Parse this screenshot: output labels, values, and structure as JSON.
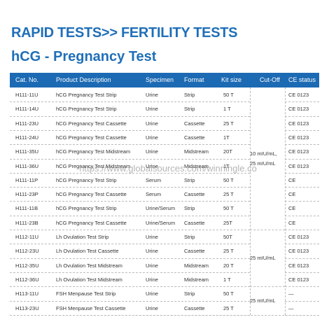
{
  "header": {
    "title": "RAPID TESTS>> FERTILITY TESTS",
    "subtitle": "hCG - Pregnancy Test"
  },
  "table": {
    "columns": [
      "Cat. No.",
      "Product Description",
      "Specimen",
      "Format",
      "Kit size",
      "Cut-Off",
      "CE status"
    ],
    "rows": [
      [
        "H111-11U",
        "hCG Pregnancy Test Strip",
        "Urine",
        "Strip",
        "50 T",
        "CE 0123"
      ],
      [
        "H111-14U",
        "hCG Pregnancy Test Strip",
        "Urine",
        "Strip",
        "1 T",
        "CE 0123"
      ],
      [
        "H111-23U",
        "hCG Pregnancy Test Cassette",
        "Urine",
        "Cassette",
        "25 T",
        "CE 0123"
      ],
      [
        "H111-24U",
        "hCG Pregnancy Test Cassette",
        "Urine",
        "Cassette",
        "1T",
        "CE 0123"
      ],
      [
        "H111-35U",
        "hCG Pregnancy Test Midstream",
        "Urine",
        "Midstream",
        "20T",
        "CE 0123"
      ],
      [
        "H111-36U",
        "hCG Pregnancy Test Midstream",
        "Urine",
        "Midstream",
        "1T",
        "CE 0123"
      ],
      [
        "H111-11P",
        "hCG Pregnancy Test Strip",
        "Serum",
        "Strip",
        "50 T",
        "CE"
      ],
      [
        "H111-23P",
        "hCG Pregnancy Test Cassette",
        "Serum",
        "Cassette",
        "25 T",
        "CE"
      ],
      [
        "H111-11B",
        "hCG Pregnancy Test Strip",
        "Urine/Serum",
        "Strip",
        "50 T",
        "CE"
      ],
      [
        "H111-23B",
        "hCG Pregnancy Test Cassette",
        "Urine/Serum",
        "Cassette",
        "25T",
        "CE"
      ],
      [
        "H112-11U",
        "Lh Ovulation Test Strip",
        "Urine",
        "Strip",
        "50T",
        "CE 0123"
      ],
      [
        "H112-23U",
        "Lh Ovulation Test Cassette",
        "Urine",
        "Cassette",
        "25 T",
        "CE 0123"
      ],
      [
        "H112-35U",
        "Lh Ovulation Test Midstream",
        "Urine",
        "Midstream",
        "20 T",
        "CE 0123"
      ],
      [
        "H112-36U",
        "Lh Ovulation Test Midstream",
        "Urine",
        "Midstream",
        "1 T",
        "CE 0123"
      ],
      [
        "H113-11U",
        "FSH Menpause Test Strip",
        "Urine",
        "Strip",
        "50 T",
        "—"
      ],
      [
        "H113-23U",
        "FSH Menpause Test Cassette",
        "Urine",
        "Cassette",
        "25 T",
        "—"
      ]
    ],
    "cut_off_groups": [
      {
        "lines": [
          "10 mIU/mL,",
          "25 mIU/mL"
        ]
      },
      {
        "lines": [
          "25 mIU/mL"
        ]
      },
      {
        "lines": [
          "25 mIU/mL"
        ]
      }
    ]
  },
  "watermark": "https://www.globalsources.com/winningle.co"
}
